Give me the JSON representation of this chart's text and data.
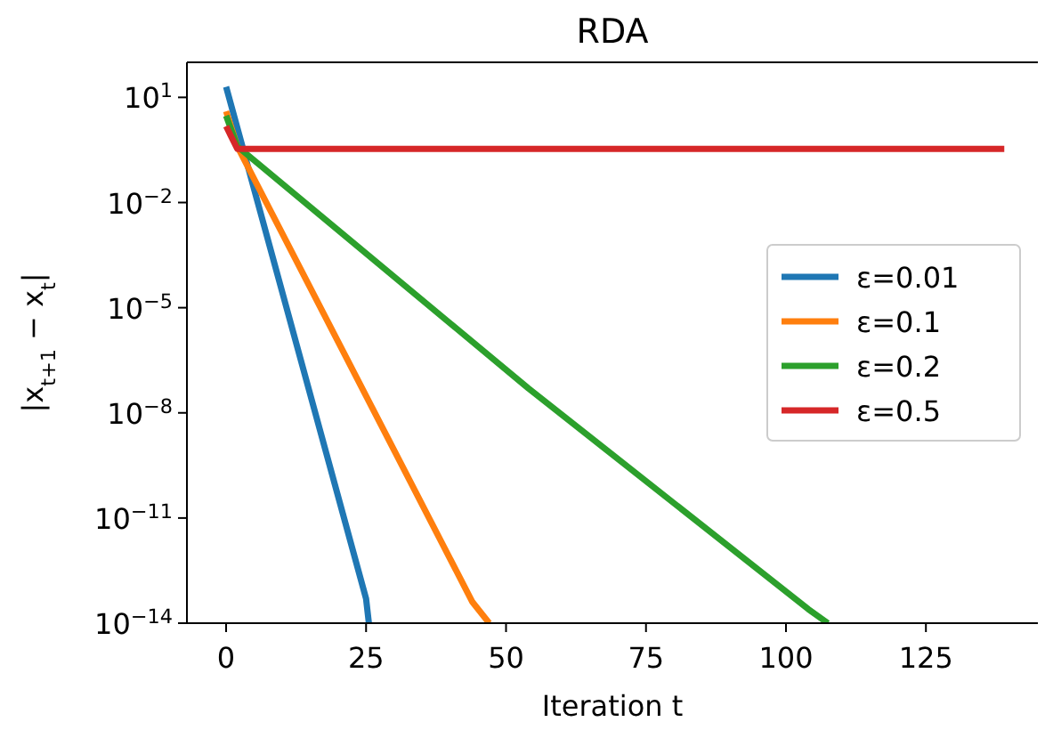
{
  "chart_data": {
    "type": "line",
    "title": "RDA",
    "xlabel": "Iteration t",
    "ylabel": "|x$_{t+1}$ − x$_{t}$|",
    "log": "y",
    "legend": "right",
    "grid": false,
    "xlim": [
      -7,
      145
    ],
    "ylim": [
      1e-14,
      100
    ],
    "xticks": [
      0,
      25,
      50,
      75,
      100,
      125
    ],
    "yticks": [
      {
        "value": 10,
        "label": "10$^{1}$"
      },
      {
        "value": 0.01,
        "label": "10$^{−2}$"
      },
      {
        "value": 1e-05,
        "label": "10$^{−5}$"
      },
      {
        "value": 1e-08,
        "label": "10$^{−8}$"
      },
      {
        "value": 1e-11,
        "label": "10$^{−11}$"
      },
      {
        "value": 1e-14,
        "label": "10$^{−14}$"
      }
    ],
    "series": [
      {
        "name": "ε=0.01",
        "color": "#1f77b4",
        "x": [
          0,
          25,
          25.5
        ],
        "values": [
          20,
          5e-14,
          1e-14
        ]
      },
      {
        "name": "ε=0.1",
        "color": "#ff7f0e",
        "x": [
          0,
          2,
          44,
          47
        ],
        "values": [
          4,
          0.4,
          4e-14,
          1e-14
        ]
      },
      {
        "name": "ε=0.2",
        "color": "#2ca02c",
        "x": [
          0,
          2,
          54,
          104,
          107.5
        ],
        "values": [
          3,
          0.4,
          5e-08,
          2.5e-14,
          1e-14
        ]
      },
      {
        "name": "ε=0.5",
        "color": "#d62728",
        "x": [
          0,
          2,
          139
        ],
        "values": [
          1.5,
          0.34,
          0.34
        ]
      }
    ]
  }
}
